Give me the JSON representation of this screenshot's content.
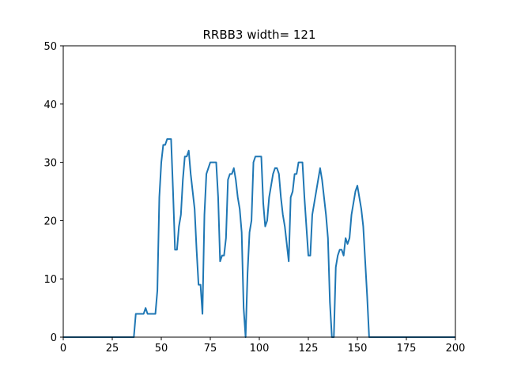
{
  "chart_data": {
    "type": "line",
    "title": "RRBB3 width= 121",
    "xlabel": "",
    "ylabel": "",
    "xlim": [
      0,
      200
    ],
    "ylim": [
      0,
      50
    ],
    "xticks": [
      0,
      25,
      50,
      75,
      100,
      125,
      150,
      175,
      200
    ],
    "yticks": [
      0,
      10,
      20,
      30,
      40,
      50
    ],
    "grid": false,
    "series": [
      {
        "color": "#1f77b4",
        "x": [
          0,
          36,
          37,
          38,
          39,
          40,
          41,
          42,
          43,
          44,
          45,
          46,
          47,
          48,
          49,
          50,
          51,
          52,
          53,
          54,
          55,
          56,
          57,
          58,
          59,
          60,
          61,
          62,
          63,
          64,
          65,
          66,
          67,
          68,
          69,
          70,
          71,
          72,
          73,
          74,
          75,
          76,
          77,
          78,
          79,
          80,
          81,
          82,
          83,
          84,
          85,
          86,
          87,
          88,
          89,
          90,
          91,
          92,
          93,
          94,
          95,
          96,
          97,
          98,
          99,
          100,
          101,
          102,
          103,
          104,
          105,
          106,
          107,
          108,
          109,
          110,
          111,
          112,
          113,
          114,
          115,
          116,
          117,
          118,
          119,
          120,
          121,
          122,
          123,
          124,
          125,
          126,
          127,
          128,
          129,
          130,
          131,
          132,
          133,
          134,
          135,
          136,
          137,
          138,
          139,
          140,
          141,
          142,
          143,
          144,
          145,
          146,
          147,
          148,
          149,
          150,
          151,
          152,
          153,
          154,
          155,
          156,
          157,
          200
        ],
        "y": [
          0,
          0,
          4,
          4,
          4,
          4,
          4,
          5,
          4,
          4,
          4,
          4,
          4,
          8,
          24,
          30,
          33,
          33,
          34,
          34,
          34,
          25,
          15,
          15,
          19,
          21,
          27,
          31,
          31,
          32,
          28,
          25,
          22,
          15,
          9,
          9,
          4,
          21,
          28,
          29,
          30,
          30,
          30,
          30,
          24,
          13,
          14,
          14,
          17,
          27,
          28,
          28,
          29,
          27,
          24,
          22,
          18,
          5,
          0,
          11,
          18,
          20,
          30,
          31,
          31,
          31,
          31,
          23,
          19,
          20,
          24,
          26,
          28,
          29,
          29,
          28,
          24,
          21,
          19,
          16,
          13,
          24,
          25,
          28,
          28,
          30,
          30,
          30,
          24,
          19,
          14,
          14,
          21,
          23,
          25,
          27,
          29,
          27,
          24,
          21,
          17,
          6,
          0,
          0,
          12,
          14,
          15,
          15,
          14,
          17,
          16,
          17,
          21,
          23,
          25,
          26,
          24,
          22,
          19,
          13,
          7,
          0,
          0,
          0
        ]
      }
    ]
  }
}
